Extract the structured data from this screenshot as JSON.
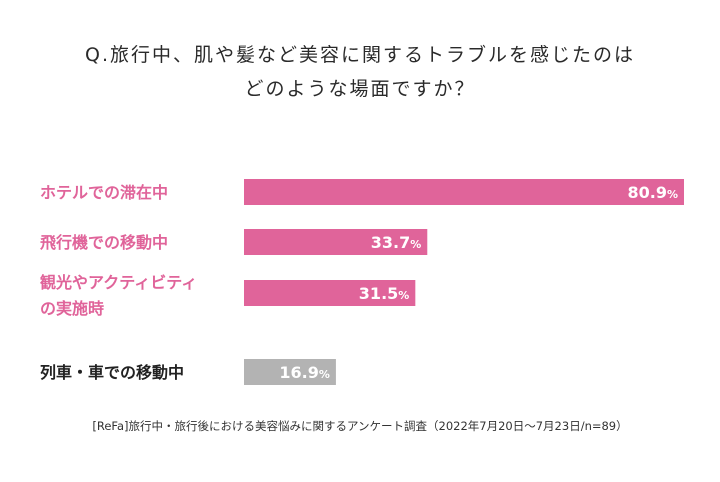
{
  "question": {
    "line1": "Q.旅行中、肌や髪など美容に関するトラブルを感じたのは",
    "line2": "どのような場面ですか？"
  },
  "chart_data": {
    "type": "bar",
    "orientation": "horizontal",
    "categories": [
      [
        "ホテルでの滞在中"
      ],
      [
        "飛行機での移動中"
      ],
      [
        "観光やアクティビティ",
        "の実施時"
      ],
      [
        "列車・車での移動中"
      ]
    ],
    "values": [
      80.9,
      33.7,
      31.5,
      16.9
    ],
    "value_labels": [
      "80.9%",
      "33.7%",
      "31.5%",
      "16.9%"
    ],
    "xlim": [
      0,
      80.9
    ],
    "grid": false,
    "legend": "none",
    "colors": {
      "highlight_bar": "#e0649a",
      "highlight_text": "#e0649a",
      "other_bar": "#b3b3b3",
      "other_text": "#222222"
    }
  },
  "footnote": "[ReFa]旅行中・旅行後における美容悩みに関するアンケート調査（2022年7月20日～7月23日/n=89）"
}
